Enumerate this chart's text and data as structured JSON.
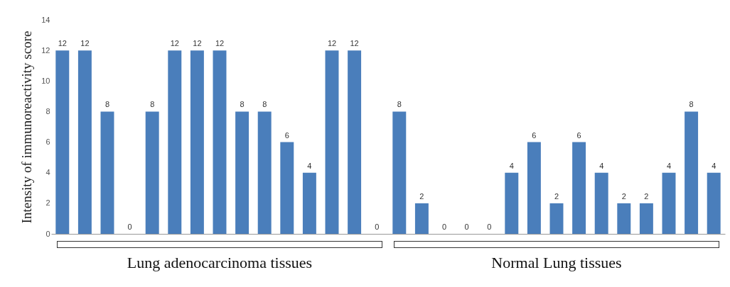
{
  "chart_data": {
    "type": "bar",
    "ylabel": "Intensity of immunoreactivity score",
    "categories": [
      null,
      null,
      null,
      null,
      null,
      null,
      null,
      null,
      null,
      null,
      null,
      null,
      null,
      null,
      null,
      null,
      null,
      null,
      null,
      null,
      null,
      null,
      null,
      null,
      null,
      null,
      null,
      null,
      null,
      null
    ],
    "values": [
      12,
      12,
      8,
      0,
      8,
      12,
      12,
      12,
      8,
      8,
      6,
      4,
      12,
      12,
      0,
      8,
      2,
      0,
      0,
      0,
      4,
      6,
      2,
      6,
      4,
      2,
      2,
      4,
      8,
      4
    ],
    "color": "#4a7ebb",
    "ylim": [
      0,
      14
    ],
    "yticks": [
      0,
      2,
      4,
      6,
      8,
      10,
      12,
      14
    ],
    "data_labels": true,
    "tick_labels": "y",
    "annotations": [
      "Lung adenocarcinoma tissues",
      "Normal Lung tissues"
    ]
  }
}
